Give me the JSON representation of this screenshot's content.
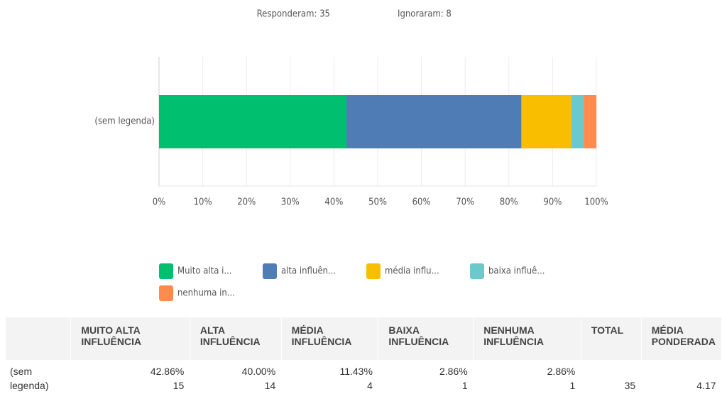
{
  "header": {
    "answered": "Responderam: 35",
    "skipped": "Ignoraram: 8"
  },
  "chart_data": {
    "type": "stacked_barh",
    "categories": [
      "(sem legenda)"
    ],
    "series": [
      {
        "name": "Muito alta i...",
        "color": "#00bf6f",
        "values": [
          42.86
        ]
      },
      {
        "name": "alta influên...",
        "color": "#507cb6",
        "values": [
          40.0
        ]
      },
      {
        "name": "média influ...",
        "color": "#f9be00",
        "values": [
          11.43
        ]
      },
      {
        "name": "baixa influê...",
        "color": "#6bc8cd",
        "values": [
          2.86
        ]
      },
      {
        "name": "nenhuma in...",
        "color": "#ff8b4f",
        "values": [
          2.86
        ]
      }
    ],
    "xlim": [
      0,
      100
    ],
    "xticks": [
      {
        "value": 0,
        "label": "0%"
      },
      {
        "value": 10,
        "label": "10%"
      },
      {
        "value": 20,
        "label": "20%"
      },
      {
        "value": 30,
        "label": "30%"
      },
      {
        "value": 40,
        "label": "40%"
      },
      {
        "value": 50,
        "label": "50%"
      },
      {
        "value": 60,
        "label": "60%"
      },
      {
        "value": 70,
        "label": "70%"
      },
      {
        "value": 80,
        "label": "80%"
      },
      {
        "value": 90,
        "label": "90%"
      },
      {
        "value": 100,
        "label": "100%"
      }
    ],
    "grid": true
  },
  "table": {
    "columns": [
      "MUITO ALTA INFLUÊNCIA",
      "ALTA INFLUÊNCIA",
      "MÉDIA INFLUÊNCIA",
      "BAIXA INFLUÊNCIA",
      "NENHUMA INFLUÊNCIA",
      "TOTAL",
      "MÉDIA PONDERADA"
    ],
    "rows": [
      {
        "label": "(sem legenda)",
        "cells": [
          {
            "percent": "42.86%",
            "count": "15"
          },
          {
            "percent": "40.00%",
            "count": "14"
          },
          {
            "percent": "11.43%",
            "count": "4"
          },
          {
            "percent": "2.86%",
            "count": "1"
          },
          {
            "percent": "2.86%",
            "count": "1"
          }
        ],
        "total": "35",
        "weighted": "4.17"
      }
    ]
  }
}
